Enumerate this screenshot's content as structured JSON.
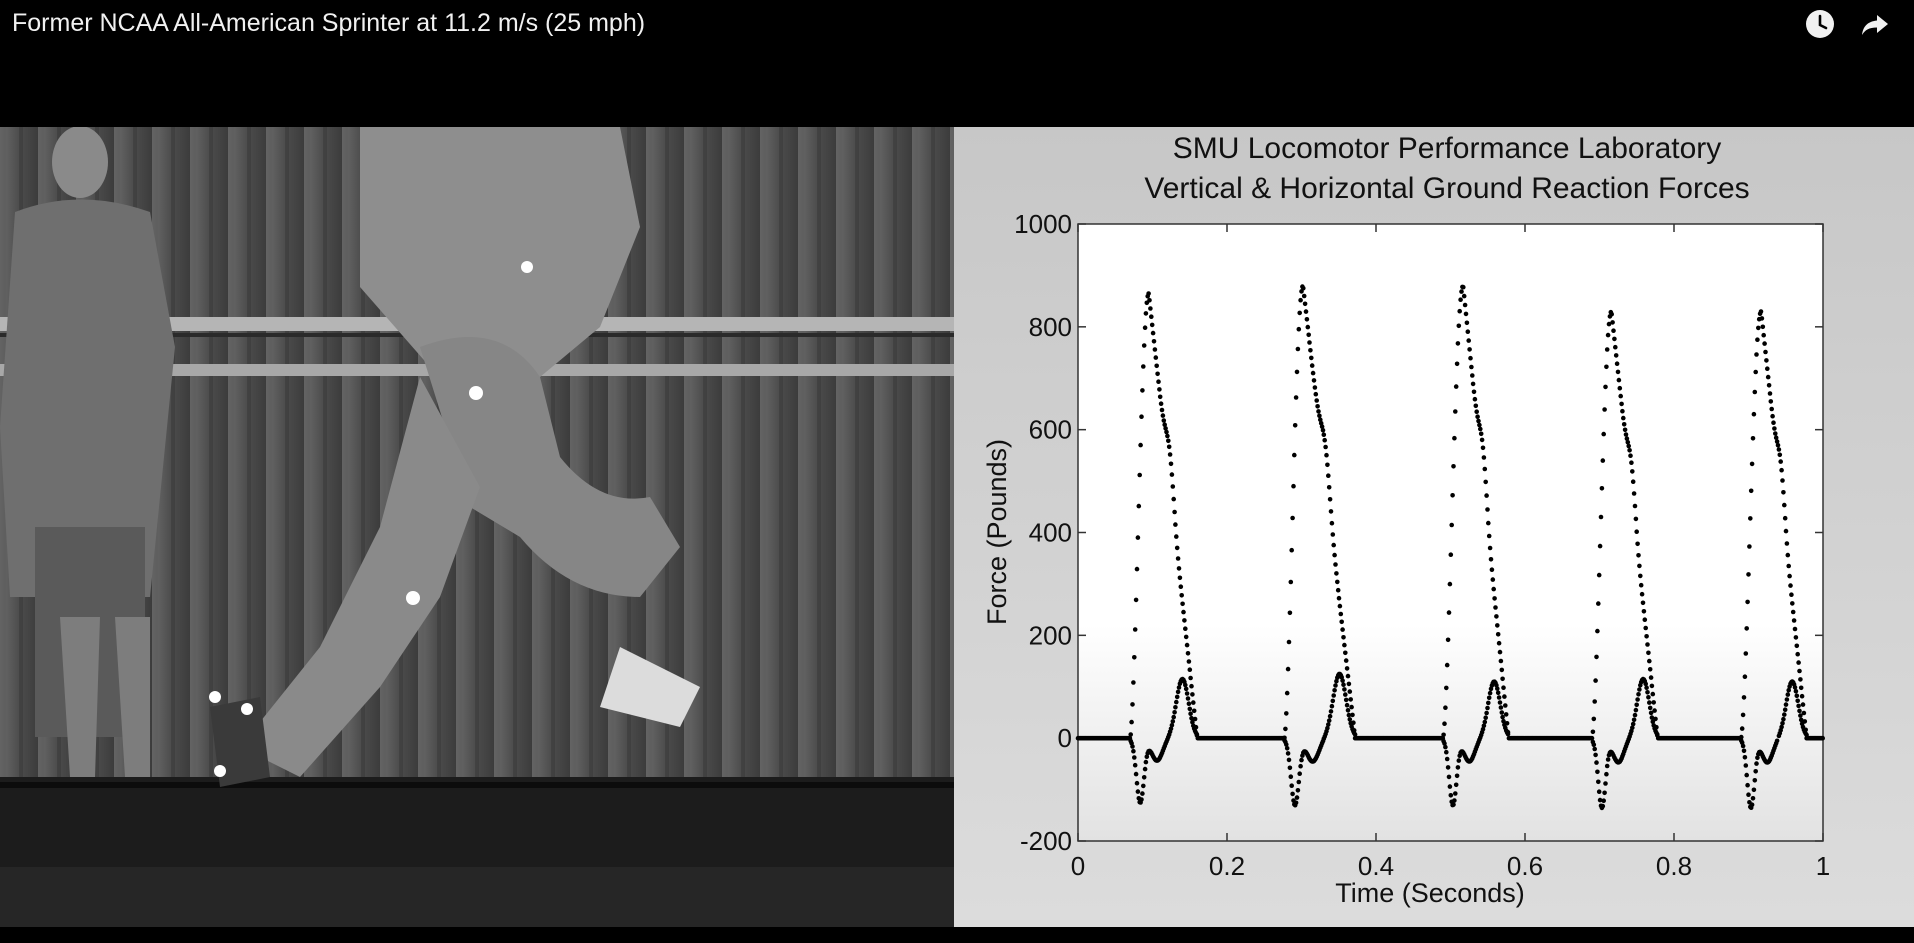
{
  "video": {
    "title": "Former NCAA All-American Sprinter at 11.2 m/s (25 mph)",
    "controls": [
      {
        "icon": "watch-later-icon"
      },
      {
        "icon": "share-icon"
      }
    ]
  },
  "chart_data": {
    "type": "scatter",
    "title": "SMU Locomotor Performance Laboratory",
    "subtitle": "Vertical & Horizontal Ground Reaction Forces",
    "xlabel": "Time (Seconds)",
    "ylabel": "Force (Pounds)",
    "xlim": [
      0,
      1
    ],
    "ylim": [
      -200,
      1000
    ],
    "xticks": [
      "0",
      "0.2",
      "0.4",
      "0.6",
      "0.8",
      "1"
    ],
    "yticks": [
      "-200",
      "0",
      "200",
      "400",
      "600",
      "800",
      "1000"
    ],
    "grid": false,
    "marker_color": "#000000",
    "ground_contacts": [
      {
        "start": 0.07,
        "peak_time": 0.095,
        "peak_vertical": 865,
        "end": 0.16,
        "braking_min": -125,
        "propulsive_max": 115
      },
      {
        "start": 0.277,
        "peak_time": 0.302,
        "peak_vertical": 880,
        "end": 0.372,
        "braking_min": -130,
        "propulsive_max": 125
      },
      {
        "start": 0.49,
        "peak_time": 0.517,
        "peak_vertical": 880,
        "end": 0.578,
        "braking_min": -130,
        "propulsive_max": 110
      },
      {
        "start": 0.69,
        "peak_time": 0.716,
        "peak_vertical": 830,
        "end": 0.778,
        "braking_min": -135,
        "propulsive_max": 115
      },
      {
        "start": 0.89,
        "peak_time": 0.917,
        "peak_vertical": 830,
        "end": 0.978,
        "braking_min": -135,
        "propulsive_max": 110
      }
    ]
  }
}
